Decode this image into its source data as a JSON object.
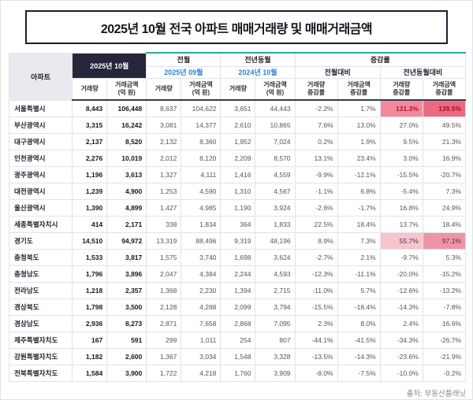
{
  "title": "2025년 10월 전국 아파트 매매거래량 및 매매거래금액",
  "source": "출처: 부동산플래닛",
  "colors": {
    "title_border": "#1c1c30",
    "current_month_header_bg": "#26263a",
    "month_label_blue": "#2f80d9",
    "group_accent_teal": "#2aa79d",
    "highlight_light_pink": "#f7c3cd",
    "highlight_medium_pink": "#ef94a5",
    "highlight_red_pink": "#f2899c",
    "highlight_strong_red": "#ec6a81",
    "highlight_text_red": "#b3122e"
  },
  "chart_data": {
    "type": "table",
    "title": "2025년 10월 전국 아파트 매매거래량 및 매매거래금액",
    "header": {
      "region": "아파트",
      "current_month": "2025년 10월",
      "prev_label": "전월",
      "prev_month": "2025년 09월",
      "yoy_label": "전년동월",
      "yoy_month": "2024년 10월",
      "change_label": "증감률",
      "vs_prev": "전월대비",
      "vs_yoy": "전년동월대비",
      "volume": "거래량",
      "amount": "거래금액\n(억 원)",
      "volume_rate": "거래량\n증감률",
      "amount_rate": "거래금액\n증감률"
    },
    "rows": [
      {
        "region": "서울특별시",
        "values": [
          "8,443",
          "106,448",
          "8,637",
          "104,622",
          "3,651",
          "44,443",
          "-2.2%",
          "1.7%",
          "131.3%",
          "139.5%"
        ],
        "highlights": {
          "8": "r2",
          "9": "r3"
        }
      },
      {
        "region": "부산광역시",
        "values": [
          "3,315",
          "16,242",
          "3,081",
          "14,377",
          "2,610",
          "10,865",
          "7.6%",
          "13.0%",
          "27.0%",
          "49.5%"
        ]
      },
      {
        "region": "대구광역시",
        "values": [
          "2,137",
          "8,520",
          "2,132",
          "8,360",
          "1,952",
          "7,024",
          "0.2%",
          "1.9%",
          "9.5%",
          "21.3%"
        ]
      },
      {
        "region": "인천광역시",
        "values": [
          "2,276",
          "10,019",
          "2,012",
          "8,120",
          "2,209",
          "8,570",
          "13.1%",
          "23.4%",
          "3.0%",
          "16.9%"
        ]
      },
      {
        "region": "광주광역시",
        "values": [
          "1,196",
          "3,613",
          "1,327",
          "4,111",
          "1,416",
          "4,559",
          "-9.9%",
          "-12.1%",
          "-15.5%",
          "-20.7%"
        ]
      },
      {
        "region": "대전광역시",
        "values": [
          "1,239",
          "4,900",
          "1,253",
          "4,590",
          "1,310",
          "4,567",
          "-1.1%",
          "6.8%",
          "-5.4%",
          "7.3%"
        ]
      },
      {
        "region": "울산광역시",
        "values": [
          "1,390",
          "4,899",
          "1,427",
          "4,985",
          "1,190",
          "3,924",
          "-2.6%",
          "-1.7%",
          "16.8%",
          "24.9%"
        ]
      },
      {
        "region": "세종특별자치시",
        "values": [
          "414",
          "2,171",
          "338",
          "1,834",
          "364",
          "1,833",
          "22.5%",
          "18.4%",
          "13.7%",
          "18.4%"
        ]
      },
      {
        "region": "경기도",
        "values": [
          "14,510",
          "94,972",
          "13,319",
          "88,496",
          "9,319",
          "48,196",
          "8.9%",
          "7.3%",
          "55.7%",
          "97.1%"
        ],
        "highlights": {
          "8": "p1",
          "9": "p2"
        }
      },
      {
        "region": "충청북도",
        "values": [
          "1,533",
          "3,817",
          "1,575",
          "3,740",
          "1,698",
          "3,624",
          "-2.7%",
          "2.1%",
          "-9.7%",
          "5.3%"
        ]
      },
      {
        "region": "충청남도",
        "values": [
          "1,796",
          "3,896",
          "2,047",
          "4,384",
          "2,244",
          "4,593",
          "-12.3%",
          "-11.1%",
          "-20.0%",
          "-15.2%"
        ]
      },
      {
        "region": "전라남도",
        "values": [
          "1,218",
          "2,357",
          "1,368",
          "2,230",
          "1,394",
          "2,715",
          "-11.0%",
          "5.7%",
          "-12.6%",
          "-13.2%"
        ]
      },
      {
        "region": "경상북도",
        "values": [
          "1,798",
          "3,500",
          "2,128",
          "4,288",
          "2,099",
          "3,794",
          "-15.5%",
          "-18.4%",
          "-14.3%",
          "-7.8%"
        ]
      },
      {
        "region": "경상남도",
        "values": [
          "2,936",
          "8,273",
          "2,871",
          "7,658",
          "2,868",
          "7,095",
          "2.3%",
          "8.0%",
          "2.4%",
          "16.6%"
        ]
      },
      {
        "region": "제주특별자치도",
        "values": [
          "167",
          "591",
          "299",
          "1,011",
          "254",
          "807",
          "-44.1%",
          "-41.5%",
          "-34.3%",
          "-26.7%"
        ]
      },
      {
        "region": "강원특별자치도",
        "values": [
          "1,182",
          "2,600",
          "1,367",
          "3,034",
          "1,548",
          "3,328",
          "-13.5%",
          "-14.3%",
          "-23.6%",
          "-21.9%"
        ]
      },
      {
        "region": "전북특별자치도",
        "values": [
          "1,584",
          "3,900",
          "1,722",
          "4,218",
          "1,760",
          "3,909",
          "-8.0%",
          "-7.5%",
          "-10.0%",
          "-0.2%"
        ]
      }
    ]
  }
}
